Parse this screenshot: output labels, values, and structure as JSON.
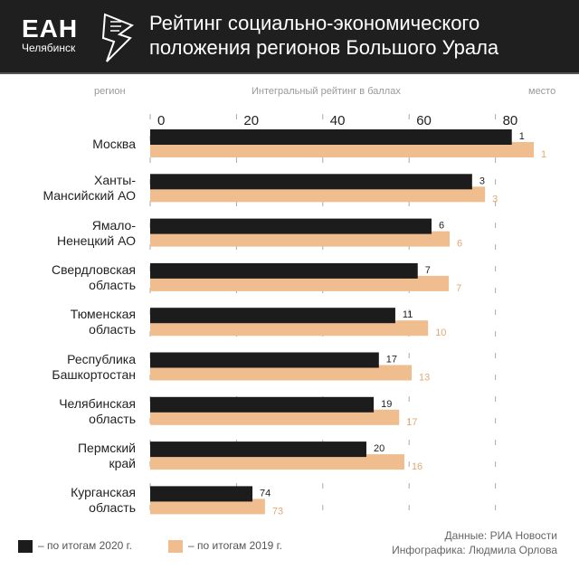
{
  "header": {
    "logo": "ЕАН",
    "logo_city": "Челябинск",
    "title_line1": "Рейтинг социально-экономического",
    "title_line2": "положения регионов Большого Урала"
  },
  "columns": {
    "region": "регион",
    "rating": "Интегральный рейтинг в баллах",
    "place": "место"
  },
  "colors": {
    "s2020": "#1c1c1c",
    "s2019": "#f0bd8f"
  },
  "chart_data": {
    "type": "bar",
    "orientation": "horizontal",
    "title": "Рейтинг социально-экономического положения регионов Большого Урала",
    "xlabel": "Интегральный рейтинг в баллах",
    "xlim": [
      0,
      90
    ],
    "xticks": [
      "0",
      "20",
      "40",
      "60",
      "80"
    ],
    "xtick_values": [
      0,
      20,
      40,
      60,
      80
    ],
    "categories": [
      "Москва",
      "Ханты-Мансийский АО",
      "Ямало-Ненецкий АО",
      "Свердловская область",
      "Тюменская область",
      "Республика Башкортостан",
      "Челябинская область",
      "Пермский край",
      "Курганская область"
    ],
    "category_lines": [
      [
        "Москва"
      ],
      [
        "Ханты-",
        "Мансийский АО"
      ],
      [
        "Ямало-",
        "Ненецкий АО"
      ],
      [
        "Свердловская",
        "область"
      ],
      [
        "Тюменская",
        "область"
      ],
      [
        "Республика",
        "Башкортостан"
      ],
      [
        "Челябинская",
        "область"
      ],
      [
        "Пермский",
        "край"
      ],
      [
        "Курганская",
        "область"
      ]
    ],
    "series": [
      {
        "name": "– по итогам 2020 г.",
        "values": [
          83.8,
          74.6,
          65.2,
          62.0,
          56.8,
          53.0,
          51.8,
          50.1,
          23.7
        ],
        "places": [
          "1",
          "3",
          "6",
          "7",
          "11",
          "17",
          "19",
          "20",
          "74"
        ]
      },
      {
        "name": "– по итогам 2019 г.",
        "values": [
          88.9,
          77.6,
          69.4,
          69.2,
          64.4,
          60.6,
          57.7,
          58.9,
          26.6
        ],
        "places": [
          "1",
          "3",
          "6",
          "7",
          "10",
          "13",
          "17",
          "16",
          "73"
        ]
      }
    ],
    "legend": "bottom-left",
    "grid": "dashed vertical"
  },
  "credits": {
    "source": "Данные: РИА Новости",
    "author": "Инфографика: Людмила Орлова"
  }
}
